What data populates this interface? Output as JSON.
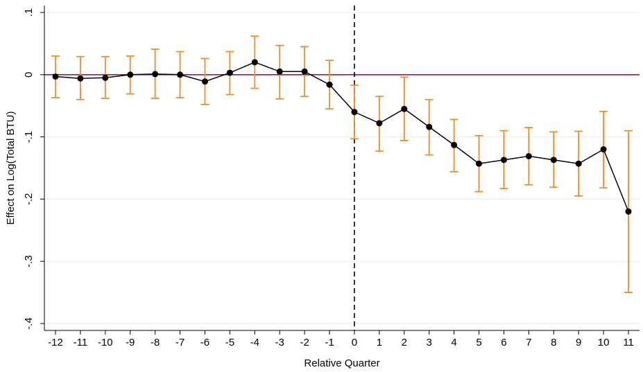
{
  "chart_data": {
    "type": "line",
    "xlabel": "Relative Quarter",
    "ylabel": "Effect on Log(Total BTU)",
    "xlim": [
      -12,
      11
    ],
    "ylim": [
      -0.4,
      0.1
    ],
    "x_ticks": [
      -12,
      -11,
      -10,
      -9,
      -8,
      -7,
      -6,
      -5,
      -4,
      -3,
      -2,
      -1,
      0,
      1,
      2,
      3,
      4,
      5,
      6,
      7,
      8,
      9,
      10,
      11
    ],
    "y_ticks": [
      {
        "value": 0.1,
        "label": ".1"
      },
      {
        "value": 0,
        "label": "0"
      },
      {
        "value": -0.1,
        "label": "-.1"
      },
      {
        "value": -0.2,
        "label": "-.2"
      },
      {
        "value": -0.3,
        "label": "-.3"
      },
      {
        "value": -0.4,
        "label": "-.4"
      }
    ],
    "grid": "horizontal",
    "reference_lines": {
      "y": 0,
      "x": 0
    },
    "colors": {
      "point_line": "#000000",
      "ci": "#f28c28",
      "zero_line": "#9b1b4a",
      "grid": "#eaeaea"
    },
    "series": [
      {
        "x": [
          -12,
          -11,
          -10,
          -9,
          -8,
          -7,
          -6,
          -5,
          -4,
          -3,
          -2,
          -1,
          0,
          1,
          2,
          3,
          4,
          5,
          6,
          7,
          8,
          9,
          10,
          11
        ],
        "y": [
          -0.003,
          -0.006,
          -0.005,
          0.0,
          0.001,
          0.0,
          -0.011,
          0.003,
          0.02,
          0.005,
          0.005,
          -0.016,
          -0.06,
          -0.078,
          -0.055,
          -0.084,
          -0.113,
          -0.143,
          -0.137,
          -0.131,
          -0.137,
          -0.143,
          -0.12,
          -0.22
        ],
        "ci_low": [
          -0.037,
          -0.04,
          -0.038,
          -0.031,
          -0.038,
          -0.037,
          -0.048,
          -0.032,
          -0.022,
          -0.039,
          -0.035,
          -0.055,
          -0.103,
          -0.123,
          -0.106,
          -0.129,
          -0.156,
          -0.188,
          -0.183,
          -0.177,
          -0.181,
          -0.195,
          -0.182,
          -0.35
        ],
        "ci_high": [
          0.03,
          0.029,
          0.029,
          0.03,
          0.041,
          0.037,
          0.026,
          0.037,
          0.062,
          0.047,
          0.045,
          0.023,
          -0.017,
          -0.035,
          -0.004,
          -0.04,
          -0.072,
          -0.098,
          -0.09,
          -0.085,
          -0.092,
          -0.091,
          -0.059,
          -0.09
        ]
      }
    ]
  }
}
